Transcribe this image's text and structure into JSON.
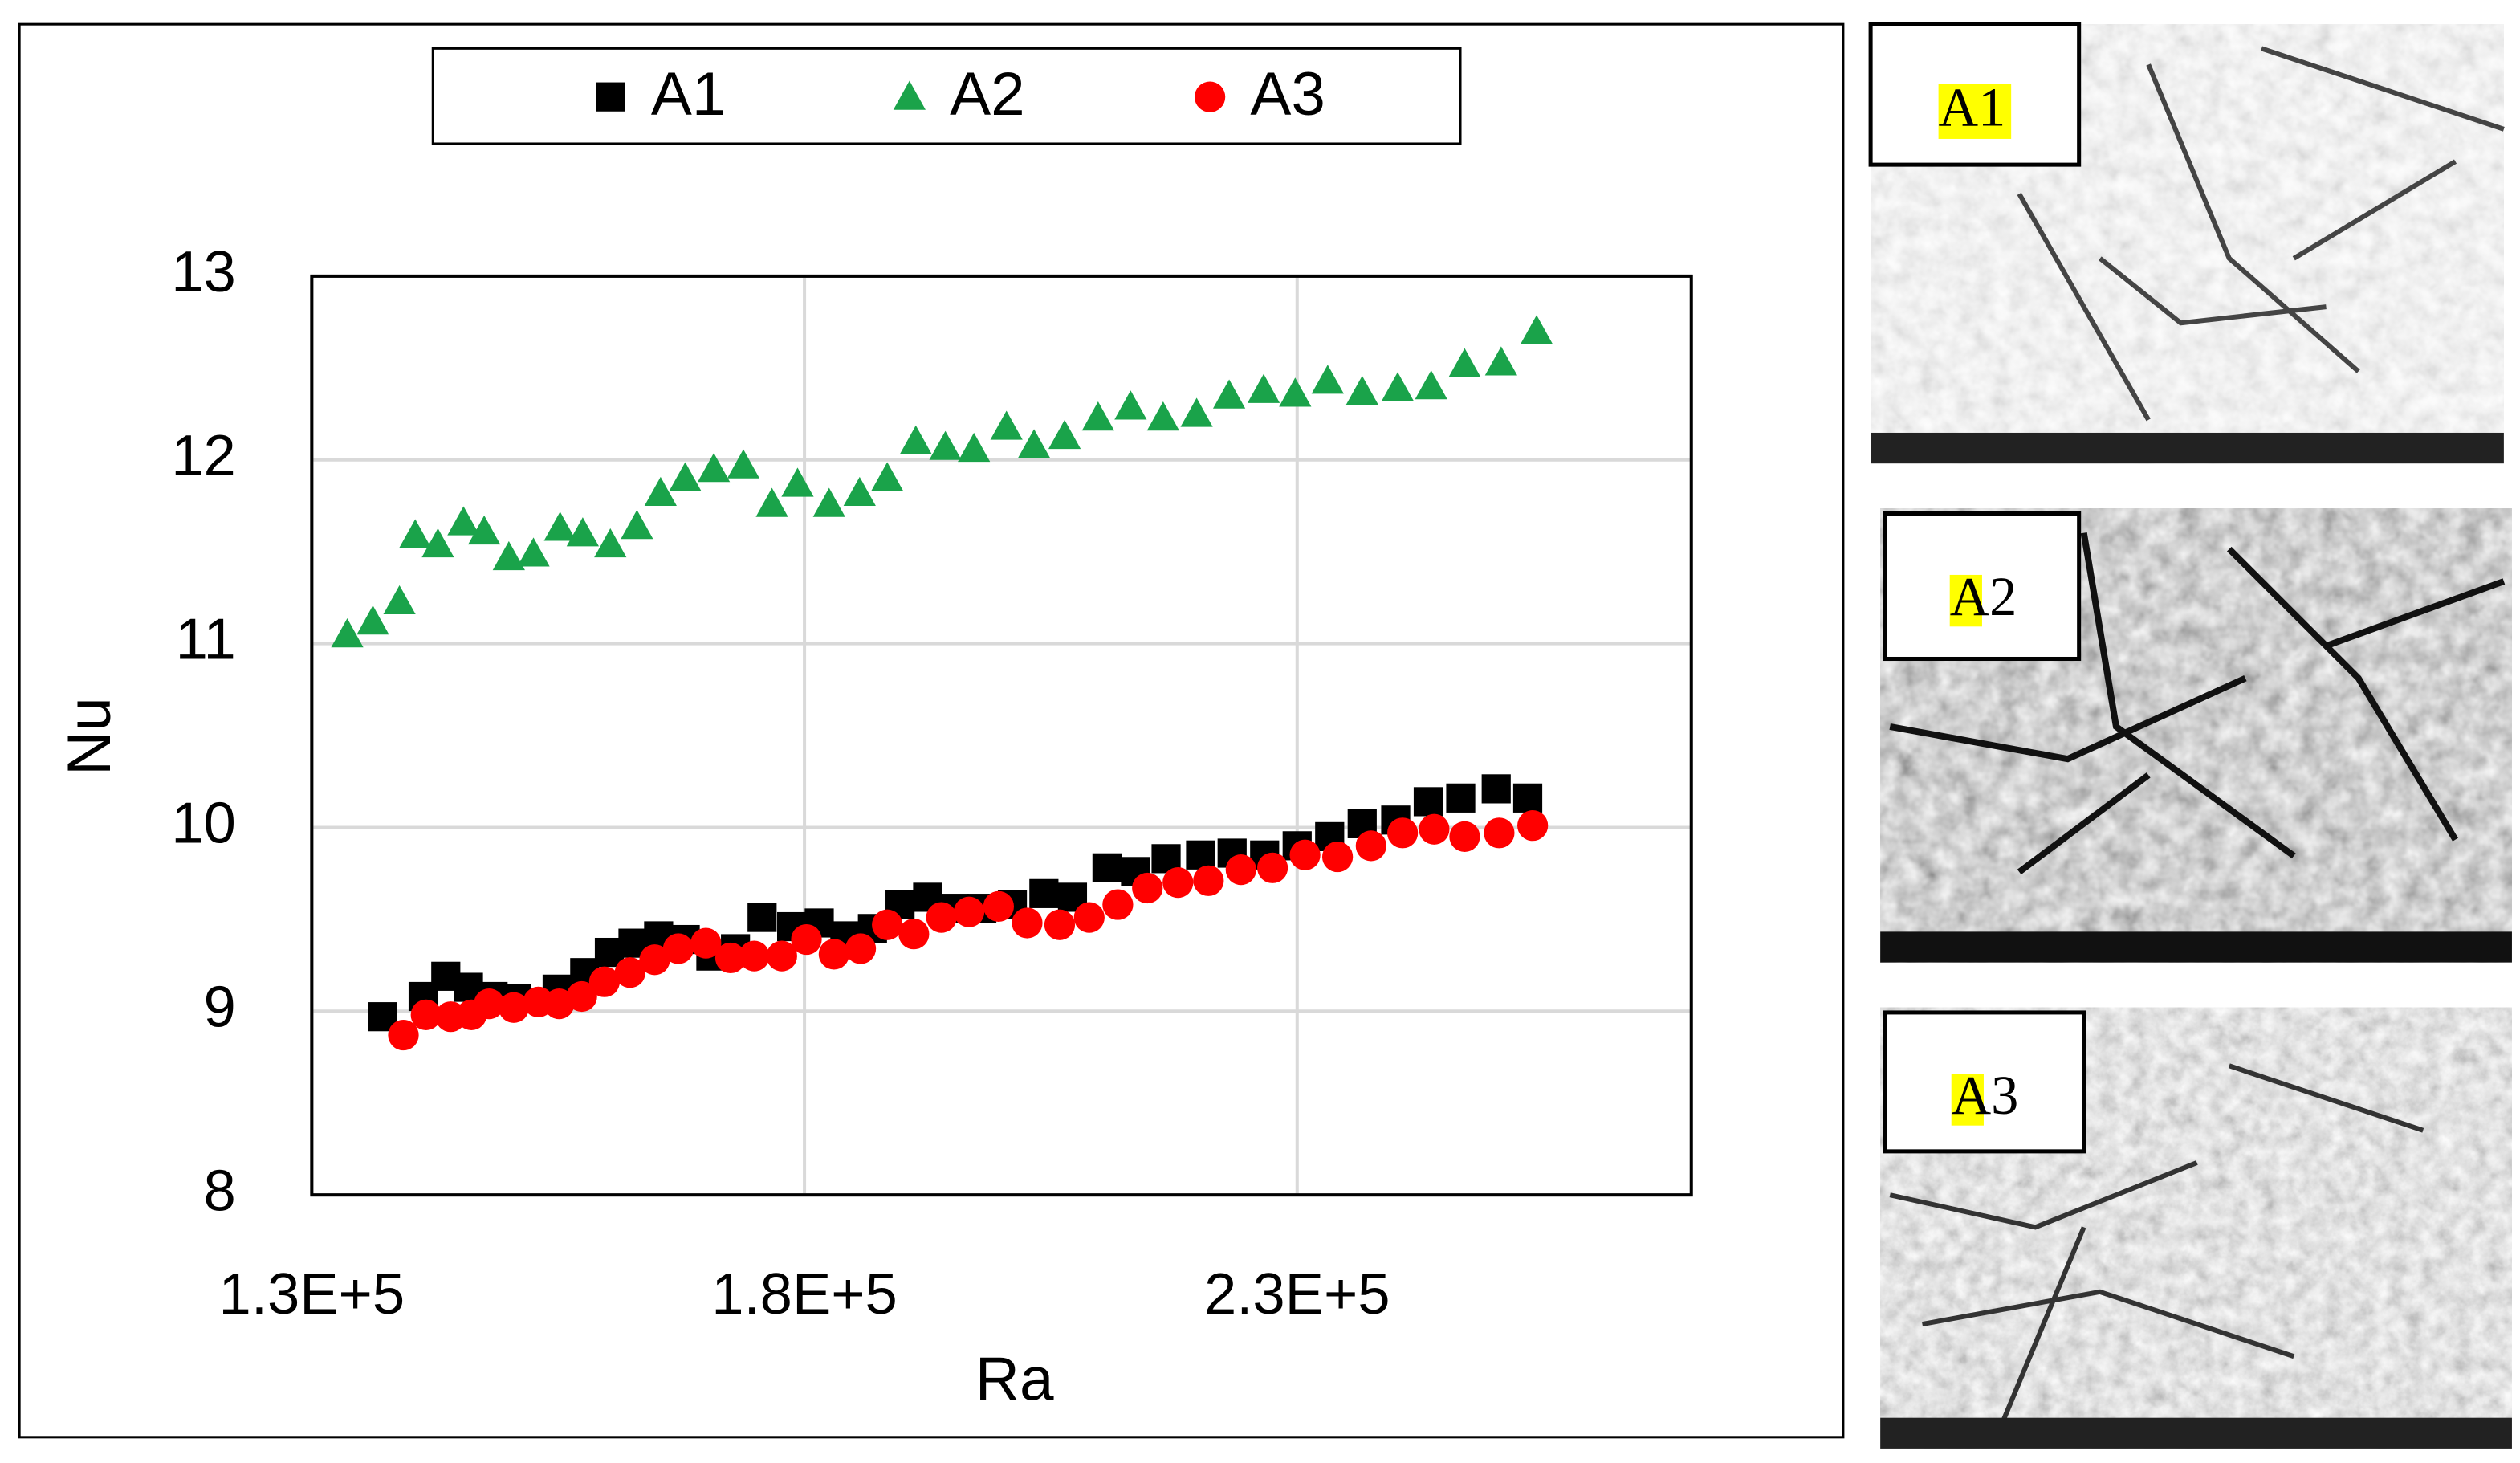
{
  "chart_data": {
    "type": "scatter",
    "xlabel": "Ra",
    "ylabel": "Nu",
    "xlim": [
      130000,
      270000
    ],
    "ylim": [
      8,
      13
    ],
    "xticks": [
      {
        "value": 130000,
        "label": "1.3E+5"
      },
      {
        "value": 180000,
        "label": "1.8E+5"
      },
      {
        "value": 230000,
        "label": "2.3E+5"
      }
    ],
    "yticks": [
      8,
      9,
      10,
      11,
      12,
      13
    ],
    "grid": true,
    "legend": "top",
    "series": [
      {
        "name": "A1",
        "color": "#000000",
        "marker": "square",
        "x": [
          137200,
          141300,
          143600,
          145900,
          148400,
          150800,
          154900,
          157700,
          160200,
          162600,
          165200,
          167900,
          170500,
          173000,
          175700,
          178700,
          181500,
          184100,
          186900,
          189700,
          192500,
          195200,
          198000,
          201100,
          204300,
          207200,
          210700,
          213600,
          216700,
          220200,
          223400,
          226700,
          230000,
          233300,
          236600,
          240000,
          243300,
          246600,
          250200,
          253400
        ],
        "values": [
          8.97,
          9.08,
          9.19,
          9.13,
          9.08,
          9.07,
          9.12,
          9.21,
          9.32,
          9.37,
          9.41,
          9.39,
          9.3,
          9.34,
          9.51,
          9.46,
          9.48,
          9.41,
          9.45,
          9.58,
          9.62,
          9.56,
          9.56,
          9.58,
          9.64,
          9.62,
          9.78,
          9.76,
          9.83,
          9.85,
          9.86,
          9.85,
          9.9,
          9.95,
          10.02,
          10.04,
          10.14,
          10.16,
          10.21,
          10.16
        ]
      },
      {
        "name": "A2",
        "color": "#1aa34a",
        "marker": "triangle",
        "x": [
          133600,
          136200,
          138900,
          140500,
          142800,
          145400,
          147500,
          150000,
          152500,
          155200,
          157500,
          160300,
          163000,
          165400,
          167900,
          170800,
          173800,
          176700,
          179300,
          182500,
          185600,
          188400,
          191300,
          194300,
          197200,
          200500,
          203300,
          206400,
          209800,
          213100,
          216400,
          219800,
          223100,
          226600,
          229800,
          233100,
          236600,
          240200,
          243600,
          247000,
          250700,
          254300
        ],
        "values": [
          11.05,
          11.12,
          11.23,
          11.59,
          11.54,
          11.66,
          11.61,
          11.47,
          11.49,
          11.63,
          11.6,
          11.54,
          11.64,
          11.82,
          11.9,
          11.95,
          11.97,
          11.76,
          11.87,
          11.76,
          11.82,
          11.9,
          12.1,
          12.07,
          12.06,
          12.18,
          12.08,
          12.13,
          12.23,
          12.29,
          12.23,
          12.25,
          12.35,
          12.38,
          12.36,
          12.43,
          12.37,
          12.39,
          12.4,
          12.52,
          12.53,
          12.7
        ]
      },
      {
        "name": "A3",
        "color": "#ff0000",
        "marker": "circle",
        "x": [
          139300,
          141600,
          144100,
          146200,
          148000,
          150500,
          153000,
          155100,
          157400,
          159700,
          162300,
          164800,
          167200,
          170000,
          172500,
          174900,
          177700,
          180200,
          183000,
          185700,
          188400,
          191100,
          193900,
          196700,
          199700,
          202600,
          205900,
          208900,
          211800,
          214800,
          217900,
          221000,
          224300,
          227500,
          230800,
          234100,
          237500,
          240700,
          243900,
          247000,
          250500,
          253900
        ],
        "values": [
          8.87,
          8.98,
          8.97,
          8.98,
          9.04,
          9.02,
          9.05,
          9.04,
          9.08,
          9.16,
          9.21,
          9.28,
          9.34,
          9.37,
          9.29,
          9.3,
          9.3,
          9.39,
          9.31,
          9.34,
          9.47,
          9.42,
          9.51,
          9.54,
          9.57,
          9.48,
          9.47,
          9.51,
          9.58,
          9.67,
          9.7,
          9.71,
          9.77,
          9.78,
          9.85,
          9.84,
          9.9,
          9.97,
          9.99,
          9.95,
          9.97,
          10.01
        ]
      }
    ]
  },
  "images": [
    {
      "label": "A1"
    },
    {
      "label": "A2"
    },
    {
      "label": "A3"
    }
  ]
}
